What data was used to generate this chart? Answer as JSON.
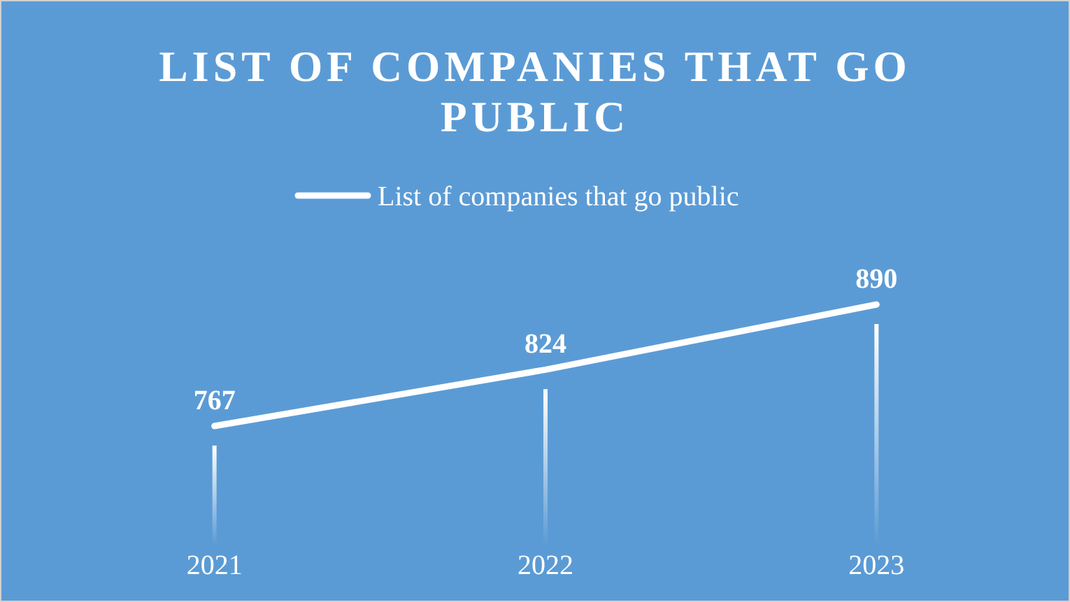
{
  "chart_data": {
    "type": "line",
    "title": "LIST OF COMPANIES THAT GO PUBLIC",
    "categories": [
      "2021",
      "2022",
      "2023"
    ],
    "series": [
      {
        "name": "List of companies that go public",
        "color": "#ffffff",
        "values": [
          767,
          824,
          890
        ]
      }
    ],
    "data_labels": true,
    "legend": "top",
    "marker": "none",
    "line_style": "solid",
    "tick_labels": "x"
  }
}
